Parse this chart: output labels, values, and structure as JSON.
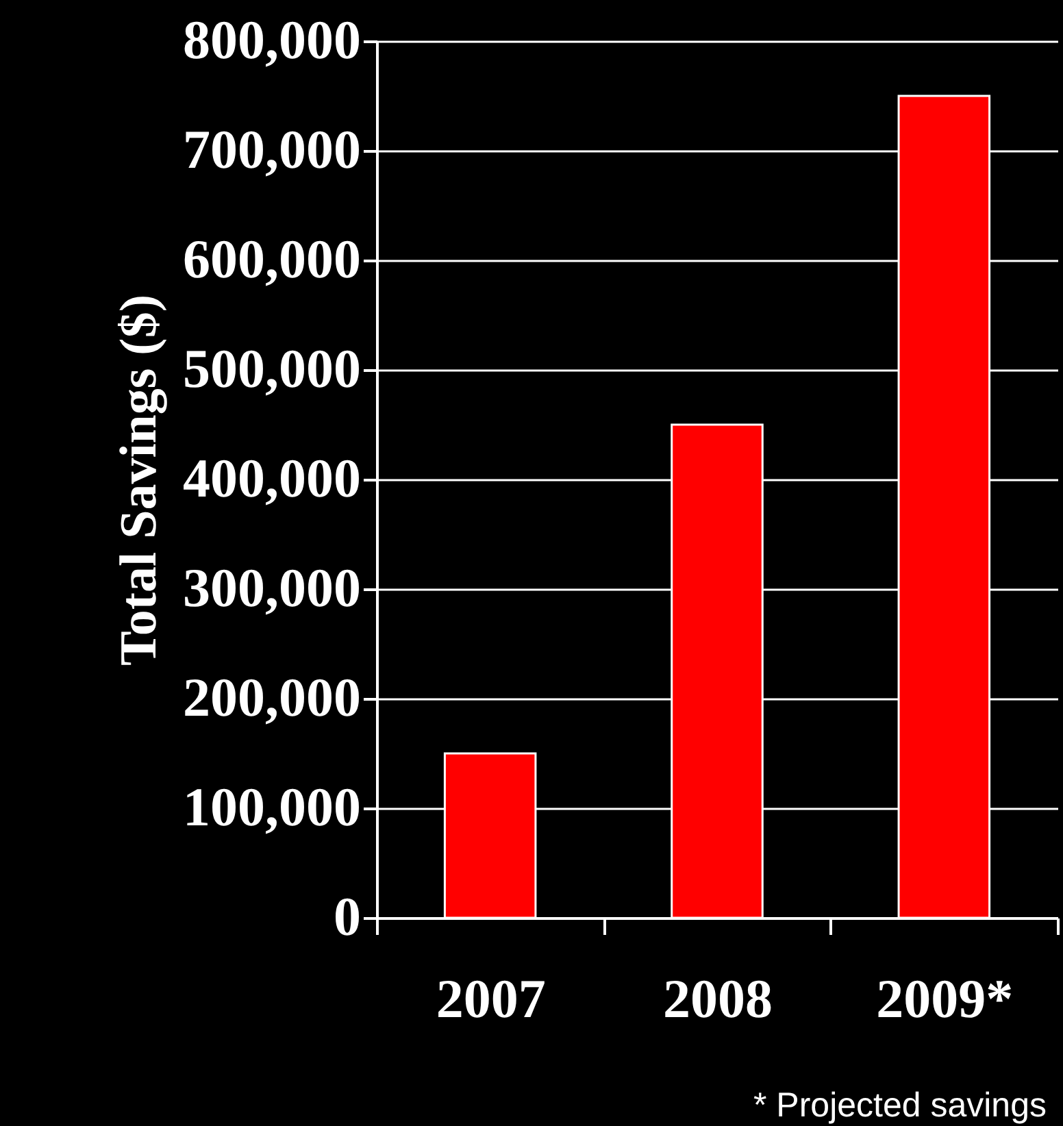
{
  "chart_data": {
    "type": "bar",
    "ylabel": "Total Savings ($)",
    "categories": [
      "2007",
      "2008",
      "2009*"
    ],
    "values": [
      150000,
      450000,
      750000
    ],
    "color": "#ff0000",
    "ylim": [
      0,
      800000
    ],
    "yticks": [
      {
        "value": 0,
        "label": "0"
      },
      {
        "value": 100000,
        "label": "100,000"
      },
      {
        "value": 200000,
        "label": "200,000"
      },
      {
        "value": 300000,
        "label": "300,000"
      },
      {
        "value": 400000,
        "label": "400,000"
      },
      {
        "value": 500000,
        "label": "500,000"
      },
      {
        "value": 600000,
        "label": "600,000"
      },
      {
        "value": 700000,
        "label": "700,000"
      },
      {
        "value": 800000,
        "label": "800,000"
      }
    ],
    "grid": "y",
    "annotations": [
      "* Projected savings"
    ]
  }
}
